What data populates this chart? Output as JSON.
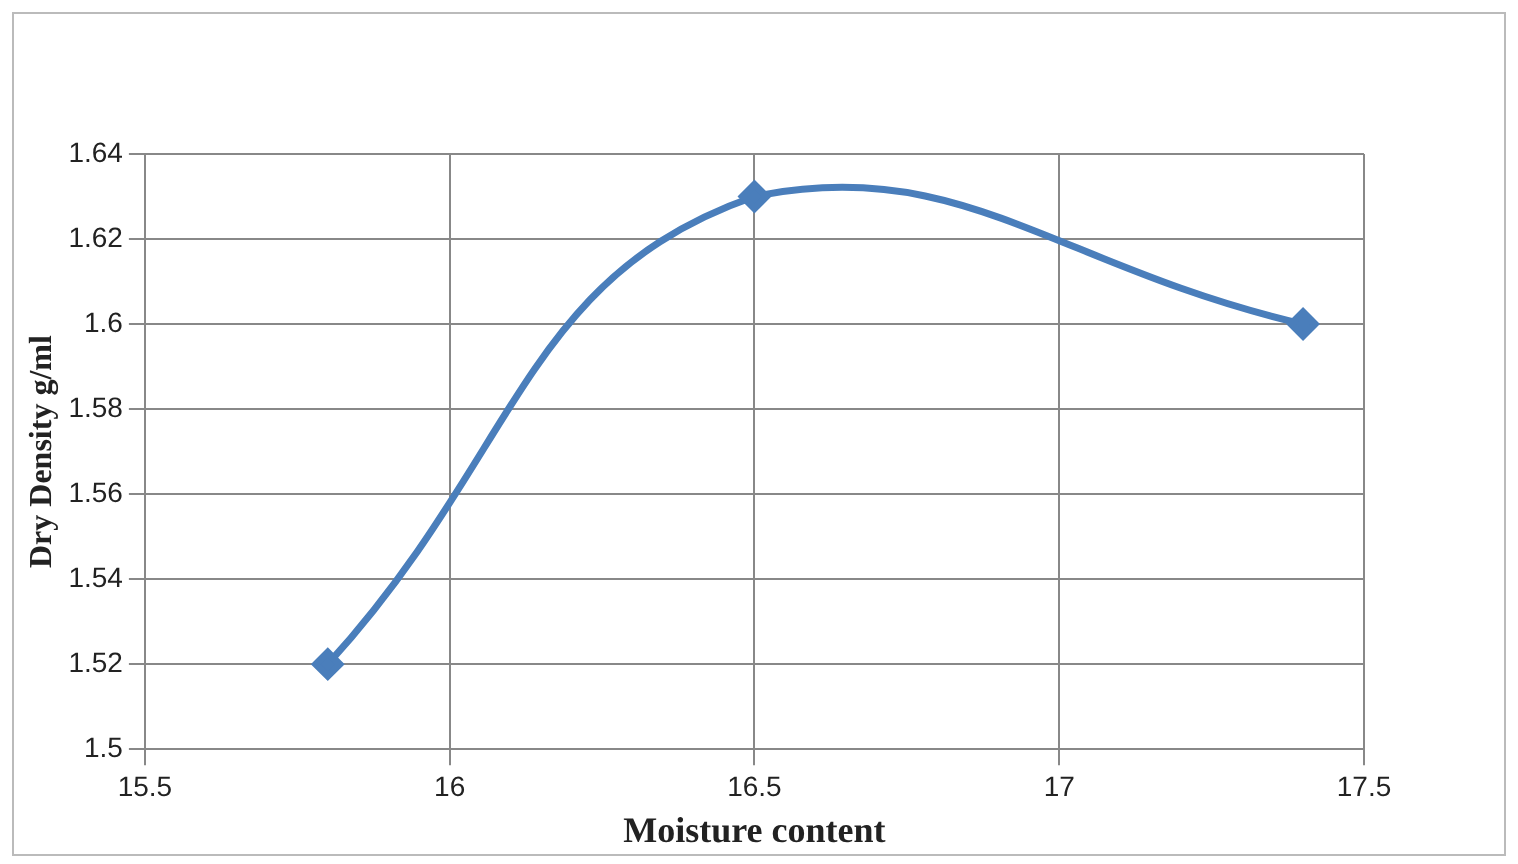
{
  "chart_data": {
    "type": "line",
    "xlabel": "Moisture content",
    "ylabel": "Dry Density g/ml",
    "x": [
      15.8,
      16.5,
      17.4
    ],
    "series": [
      {
        "color": "#4a7ebb",
        "values": [
          1.52,
          1.63,
          1.6
        ]
      }
    ],
    "xlim": [
      15.5,
      17.5
    ],
    "xticks": [
      15.5,
      16,
      16.5,
      17,
      17.5
    ],
    "ylim": [
      1.5,
      1.64
    ],
    "yticks": [
      1.5,
      1.52,
      1.54,
      1.56,
      1.58,
      1.6,
      1.62,
      1.64
    ],
    "grid": true,
    "legend": false,
    "marker": "diamond",
    "line_style": "solid"
  }
}
